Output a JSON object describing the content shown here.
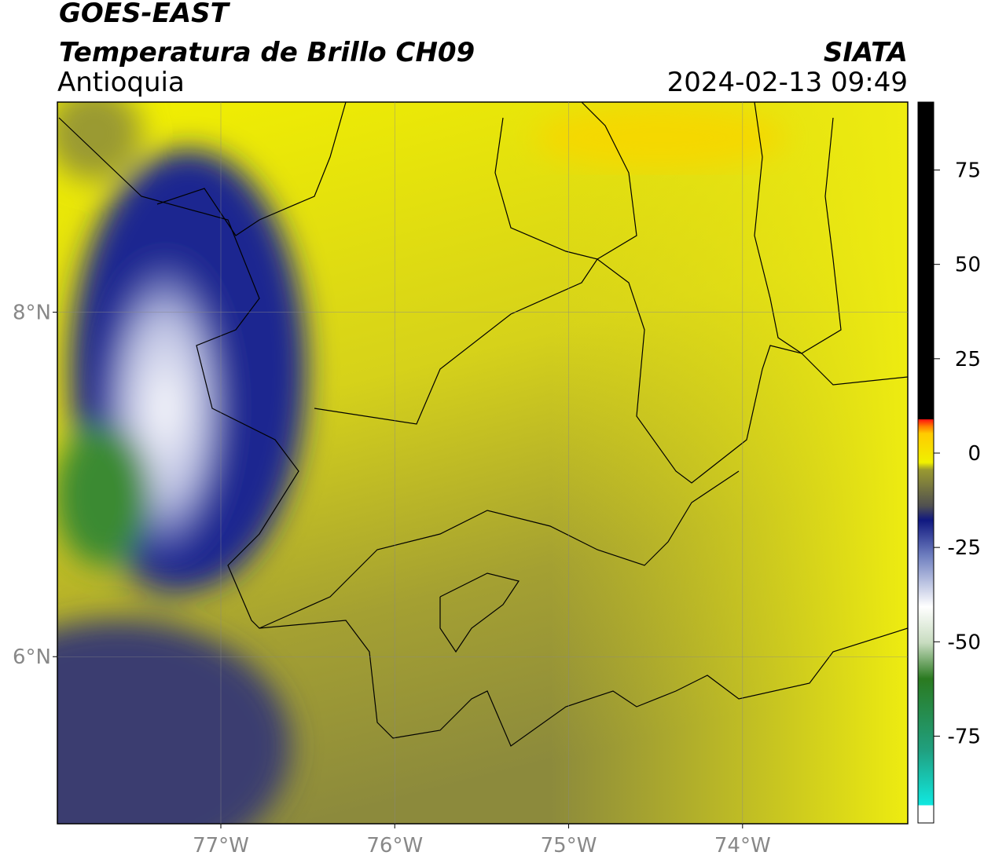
{
  "header": {
    "title": "GOES-EAST",
    "subtitle": "Temperatura de Brillo CH09",
    "region": "Antioquia",
    "source": "SIATA",
    "datetime": "2024-02-13 09:49"
  },
  "map": {
    "lonlim": [
      -77.94,
      -73.05
    ],
    "latlim": [
      5.03,
      9.22
    ],
    "lon_ticks": [
      {
        "value": -77,
        "label": "77°W"
      },
      {
        "value": -76,
        "label": "76°W"
      },
      {
        "value": -75,
        "label": "75°W"
      },
      {
        "value": -74,
        "label": "74°W"
      }
    ],
    "lat_ticks": [
      {
        "value": 8,
        "label": "8°N"
      },
      {
        "value": 6,
        "label": "6°N"
      }
    ]
  },
  "colorbar": {
    "lim": [
      -98,
      93
    ],
    "ticks": [
      75,
      50,
      25,
      0,
      -25,
      -50,
      -75
    ]
  }
}
